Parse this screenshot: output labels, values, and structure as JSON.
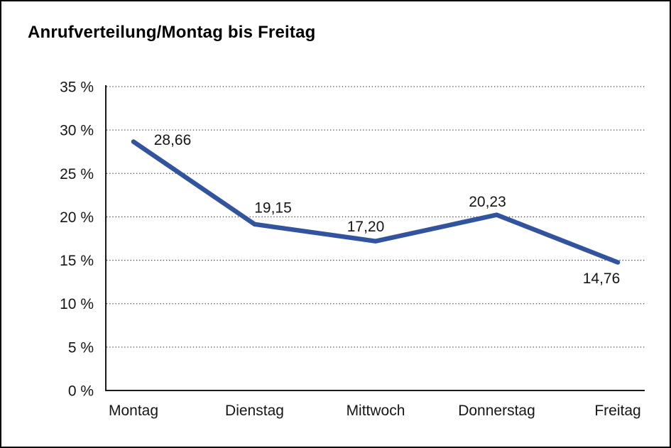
{
  "title": "Anrufverteilung/Montag bis Freitag",
  "colors": {
    "line": "#32549E",
    "axis": "#1a1a1a",
    "grid": "#454545",
    "text": "#151515",
    "background": "#ffffff",
    "border": "#000000"
  },
  "chart_data": {
    "type": "line",
    "title": "Anrufverteilung/Montag bis Freitag",
    "categories": [
      "Montag",
      "Dienstag",
      "Mittwoch",
      "Donnerstag",
      "Freitag"
    ],
    "values": [
      28.66,
      19.15,
      17.2,
      20.23,
      14.76
    ],
    "point_labels": [
      "28,66",
      "19,15",
      "17,20",
      "20,23",
      "14,76"
    ],
    "series_name": "Anrufverteilung",
    "xlabel": "",
    "ylabel": "",
    "y_unit": "%",
    "ylim": [
      0,
      35
    ],
    "y_tick_step": 5,
    "y_tick_labels": [
      "0 %",
      "5 %",
      "10 %",
      "15 %",
      "20 %",
      "25 %",
      "30 %",
      "35 %"
    ],
    "grid": "horizontal-dotted",
    "legend": "none"
  }
}
